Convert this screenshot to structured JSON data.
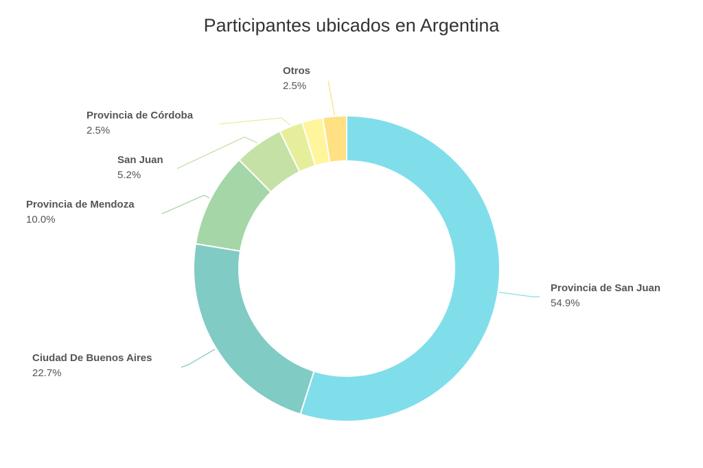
{
  "chart_data": {
    "type": "pie",
    "variant": "donut",
    "title": "Participantes ubicados en Argentina",
    "legend": "none",
    "slices": [
      {
        "label": "Provincia de San Juan",
        "value": 54.9,
        "display": "54.9%",
        "color": "#80deea"
      },
      {
        "label": "Ciudad De Buenos Aires",
        "value": 22.7,
        "display": "22.7%",
        "color": "#80cbc4"
      },
      {
        "label": "Provincia de Mendoza",
        "value": 10.0,
        "display": "10.0%",
        "color": "#a5d6a7"
      },
      {
        "label": "San Juan",
        "value": 5.2,
        "display": "5.2%",
        "color": "#c5e1a5"
      },
      {
        "label": "Provincia de Córdoba",
        "value": 2.5,
        "display": "2.5%",
        "color": "#e6ee9c"
      },
      {
        "label": "",
        "value": 2.2,
        "display": "",
        "color": "#fff59d"
      },
      {
        "label": "Otros",
        "value": 2.5,
        "display": "2.5%",
        "color": "#ffe082"
      }
    ]
  }
}
